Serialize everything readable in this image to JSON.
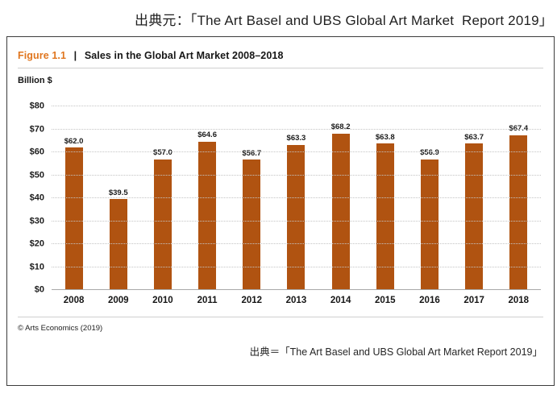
{
  "page": {
    "top_caption": "出典元：「The Art Basel and UBS Global Art Market  Report 2019」"
  },
  "figure": {
    "label": "Figure 1.1",
    "separator": "|",
    "title": "Sales in the Global Art Market 2008–2018",
    "copyright": "© Arts Economics (2019)",
    "source_caption": "出典＝「The Art Basel and UBS Global Art Market Report 2019」"
  },
  "chart_data": {
    "type": "bar",
    "title": "Sales in the Global Art Market 2008–2018",
    "unit_label": "Billion $",
    "categories": [
      "2008",
      "2009",
      "2010",
      "2011",
      "2012",
      "2013",
      "2014",
      "2015",
      "2016",
      "2017",
      "2018"
    ],
    "values": [
      62.0,
      39.5,
      57.0,
      64.6,
      56.7,
      63.3,
      68.2,
      63.8,
      56.9,
      63.7,
      67.4
    ],
    "value_labels": [
      "$62.0",
      "$39.5",
      "$57.0",
      "$64.6",
      "$56.7",
      "$63.3",
      "$68.2",
      "$63.8",
      "$56.9",
      "$63.7",
      "$67.4"
    ],
    "y_ticks": [
      "$0",
      "$10",
      "$20",
      "$30",
      "$40",
      "$50",
      "$60",
      "$70",
      "$80"
    ],
    "ylim": [
      0,
      80
    ],
    "ylabel": "Billion $",
    "xlabel": "",
    "grid": "horizontal-dotted",
    "legend": "none",
    "bar_color": "#b05311",
    "accent_color": "#e0761f"
  }
}
